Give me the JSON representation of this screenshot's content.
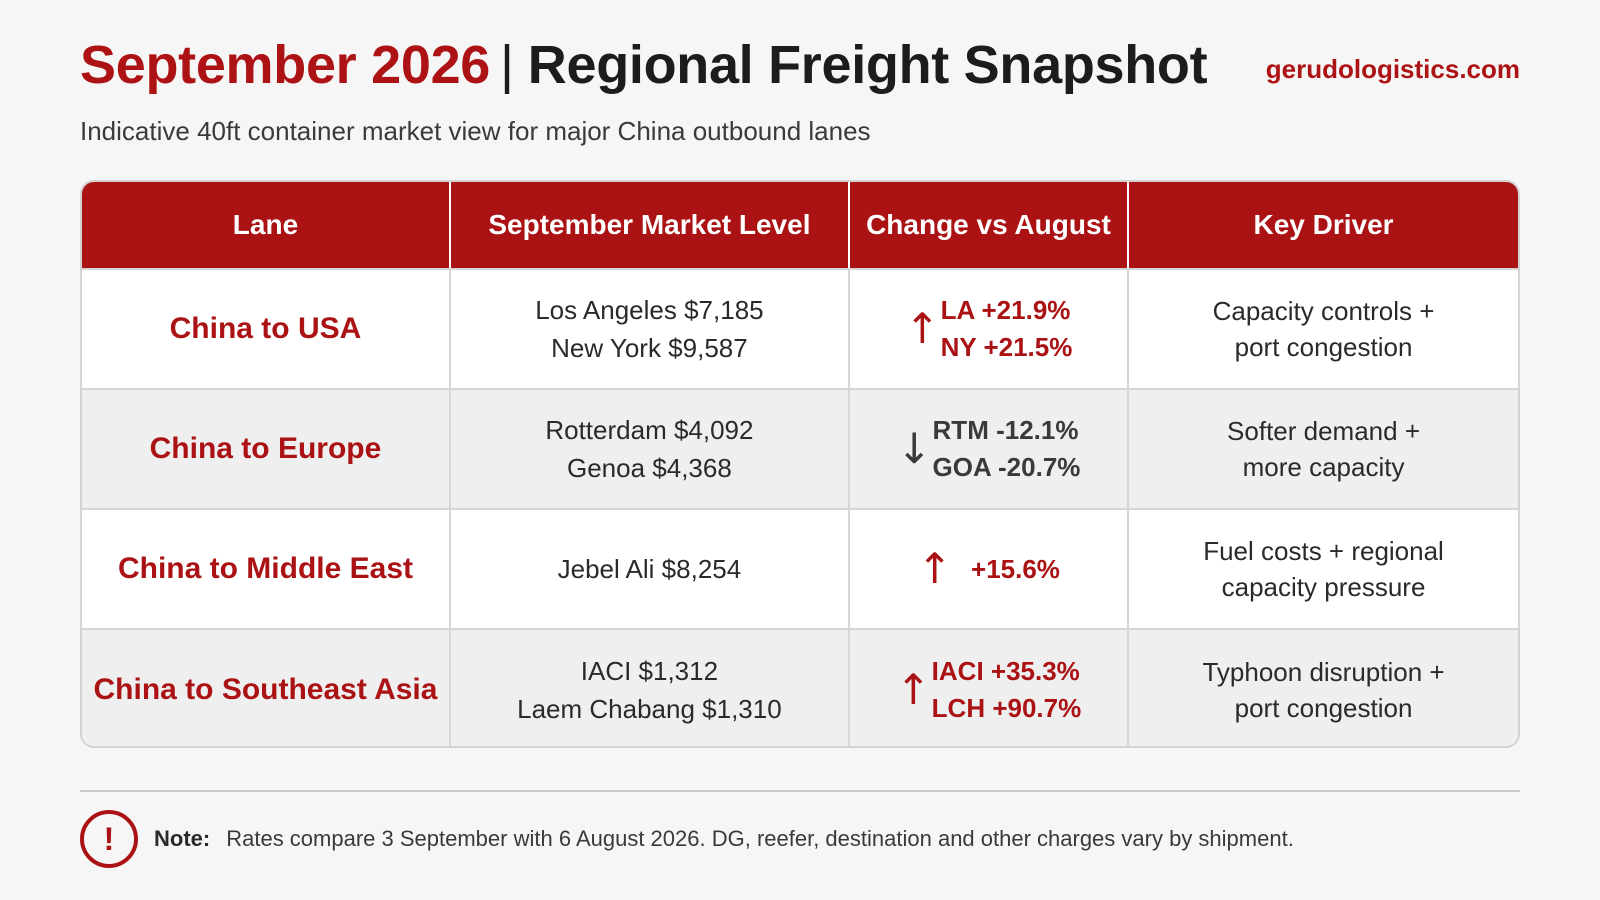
{
  "header": {
    "title_accent": "September 2026",
    "title_separator": "|",
    "title_main": "Regional Freight Snapshot",
    "website": "gerudologistics.com",
    "subtitle": "Indicative 40ft container market view for major China outbound lanes"
  },
  "table": {
    "columns": [
      "Lane",
      "September Market Level",
      "Change vs August",
      "Key Driver"
    ],
    "rows": [
      {
        "lane": "China to USA",
        "levels": [
          "Los Angeles $7,185",
          "New York $9,587"
        ],
        "direction": "up",
        "arrow": "↑",
        "changes": [
          "LA +21.9%",
          "NY +21.5%"
        ],
        "driver": [
          "Capacity controls +",
          "port congestion"
        ]
      },
      {
        "lane": "China to Europe",
        "levels": [
          "Rotterdam $4,092",
          "Genoa $4,368"
        ],
        "direction": "down",
        "arrow": "↓",
        "changes": [
          "RTM -12.1%",
          "GOA -20.7%"
        ],
        "driver": [
          "Softer demand +",
          "more capacity"
        ]
      },
      {
        "lane": "China to Middle East",
        "levels": [
          "Jebel Ali $8,254"
        ],
        "direction": "up",
        "arrow": "↑",
        "changes": [
          "+15.6%"
        ],
        "driver": [
          "Fuel costs + regional",
          "capacity pressure"
        ]
      },
      {
        "lane": "China to Southeast Asia",
        "levels": [
          "IACI $1,312",
          "Laem Chabang $1,310"
        ],
        "direction": "up",
        "arrow": "↑",
        "changes": [
          "IACI +35.3%",
          "LCH +90.7%"
        ],
        "driver": [
          "Typhoon disruption +",
          "port congestion"
        ]
      }
    ]
  },
  "note": {
    "icon": "!",
    "label": "Note:",
    "text": "Rates compare 3 September with 6 August 2026. DG, reefer, destination and other charges vary by shipment."
  },
  "colors": {
    "accent": "#ab1214",
    "row_alt": "#efefef",
    "background": "#f6f6f6"
  }
}
